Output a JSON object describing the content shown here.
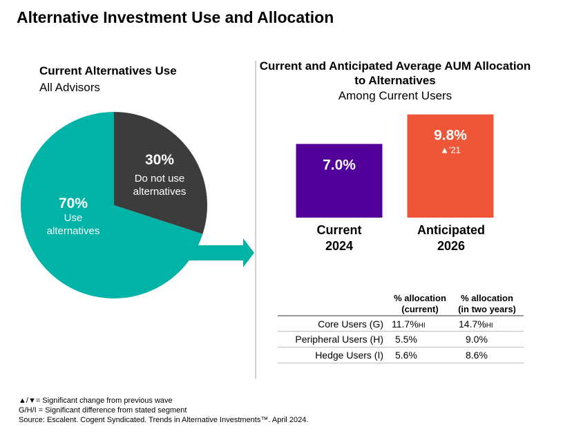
{
  "title": "Alternative Investment Use and Allocation",
  "colors": {
    "use": "#00b3a7",
    "not_use": "#3c3c3c",
    "current": "#520099",
    "anticipated": "#ef5637",
    "divider": "#cfcfcf"
  },
  "pie": {
    "title": "Current Alternatives Use",
    "subtitle": "All Advisors",
    "slices": [
      {
        "value": 30,
        "value_label": "30%",
        "label": "Do not use alternatives"
      },
      {
        "value": 70,
        "value_label": "70%",
        "label": "Use alternatives"
      }
    ]
  },
  "chart_data": {
    "type": "bar",
    "title": "Current and Anticipated Average AUM Allocation to Alternatives",
    "subtitle": "Among Current Users",
    "categories": [
      "Current 2024",
      "Anticipated 2026"
    ],
    "values": [
      7.0,
      9.8
    ],
    "value_labels": [
      "7.0%",
      "9.8%"
    ],
    "annotations": [
      {
        "category": "Anticipated 2026",
        "text": "▲'21"
      }
    ],
    "ylim": [
      0,
      10.5
    ]
  },
  "table": {
    "headers": [
      "% allocation (current)",
      "% allocation (in two years)"
    ],
    "rows": [
      {
        "label": "Core Users (G)",
        "current": "11.7%",
        "current_sig": "HI",
        "future": "14.7%",
        "future_sig": "HI"
      },
      {
        "label": "Peripheral Users (H)",
        "current": "5.5%",
        "current_sig": "",
        "future": "9.0%",
        "future_sig": ""
      },
      {
        "label": "Hedge Users (I)",
        "current": "5.6%",
        "current_sig": "",
        "future": "8.6%",
        "future_sig": ""
      }
    ]
  },
  "footnotes": [
    "▲/▼= Significant change from previous wave",
    "G/H/I = Significant difference from stated segment",
    "Source: Escalent. Cogent Syndicated. Trends in Alternative Investments™. April 2024."
  ]
}
